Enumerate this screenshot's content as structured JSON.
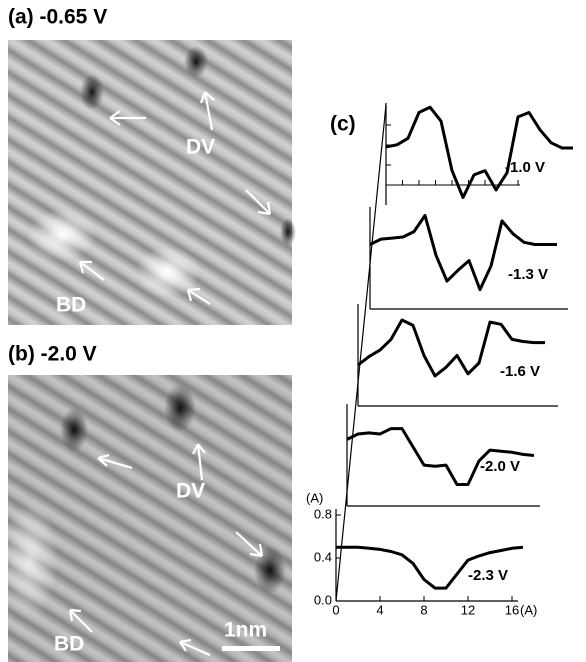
{
  "panel_a": {
    "label": "(a) -0.65 V",
    "marker_1": "DV",
    "marker_2": "BD"
  },
  "panel_b": {
    "label": "(b) -2.0 V",
    "marker_1": "DV",
    "marker_2": "BD",
    "scale_bar": "1nm"
  },
  "chart_data": {
    "type": "line",
    "title": "(c)",
    "xlabel": "(A)",
    "ylabel": "(A)",
    "x": [
      0,
      1,
      2,
      3,
      4,
      5,
      6,
      7,
      8,
      9,
      10,
      11,
      12,
      13,
      14,
      15,
      16,
      17
    ],
    "xlim": [
      0,
      16
    ],
    "xticks": [
      0,
      4,
      8,
      12,
      16
    ],
    "ylim": [
      0,
      0.8
    ],
    "yticks": [
      {
        "value": 0,
        "label": "0.0"
      },
      {
        "value": 0.4,
        "label": "0.4"
      },
      {
        "value": 0.8,
        "label": "0.8"
      }
    ],
    "series": [
      {
        "name": "-2.3 V",
        "color": "#000000",
        "values": [
          0.5,
          0.5,
          0.5,
          0.49,
          0.48,
          0.46,
          0.43,
          0.35,
          0.2,
          0.12,
          0.12,
          0.25,
          0.38,
          0.42,
          0.45,
          0.47,
          0.49,
          0.5
        ]
      },
      {
        "name": "-2.0 V",
        "color": "#000000",
        "values": [
          0.62,
          0.67,
          0.68,
          0.67,
          0.72,
          0.72,
          0.55,
          0.38,
          0.37,
          0.38,
          0.2,
          0.2,
          0.42,
          0.52,
          0.51,
          0.5,
          0.48,
          0.47
        ]
      },
      {
        "name": "-1.6 V",
        "color": "#000000",
        "values": [
          0.38,
          0.46,
          0.52,
          0.62,
          0.8,
          0.75,
          0.47,
          0.28,
          0.36,
          0.47,
          0.3,
          0.4,
          0.78,
          0.76,
          0.62,
          0.6,
          0.59,
          0.59
        ]
      },
      {
        "name": "-1.3 V",
        "color": "#000000",
        "values": [
          0.6,
          0.65,
          0.66,
          0.67,
          0.72,
          0.87,
          0.5,
          0.26,
          0.36,
          0.45,
          0.18,
          0.4,
          0.82,
          0.7,
          0.62,
          0.6,
          0.6,
          0.6
        ]
      },
      {
        "name": "-1.0 V",
        "color": "#000000",
        "values": [
          0.54,
          0.56,
          0.62,
          0.86,
          0.91,
          0.78,
          0.32,
          0.07,
          0.28,
          0.32,
          0.14,
          0.3,
          0.82,
          0.86,
          0.7,
          0.58,
          0.53,
          0.53
        ]
      }
    ]
  }
}
